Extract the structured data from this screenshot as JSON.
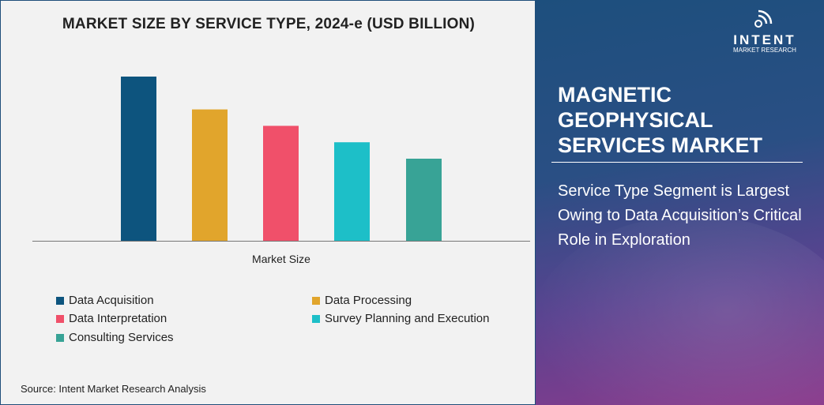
{
  "chart_data": {
    "type": "bar",
    "title": "MARKET SIZE BY SERVICE TYPE, 2024-e (USD BILLION)",
    "xlabel": "Market Size",
    "ylabel": "",
    "categories": [
      "Market Size"
    ],
    "series": [
      {
        "name": "Data Acquisition",
        "values": [
          10
        ],
        "color": "#0d547e"
      },
      {
        "name": "Data Processing",
        "values": [
          8
        ],
        "color": "#e1a52c"
      },
      {
        "name": "Data Interpretation",
        "values": [
          7
        ],
        "color": "#f0506a"
      },
      {
        "name": "Survey Planning and Execution",
        "values": [
          6
        ],
        "color": "#1dbfc8"
      },
      {
        "name": "Consulting Services",
        "values": [
          5
        ],
        "color": "#38a396"
      }
    ],
    "ylim": [
      0,
      10.4
    ],
    "grid": false,
    "legend": "bottom"
  },
  "source": "Source: Intent Market Research Analysis",
  "panel": {
    "title": "MAGNETIC GEOPHYSICAL SERVICES MARKET",
    "subtitle": "Service Type Segment is Largest Owing to Data Acquisition’s Critical Role in Exploration",
    "logo_main": "INTENT",
    "logo_sub": "MARKET RESEARCH"
  }
}
